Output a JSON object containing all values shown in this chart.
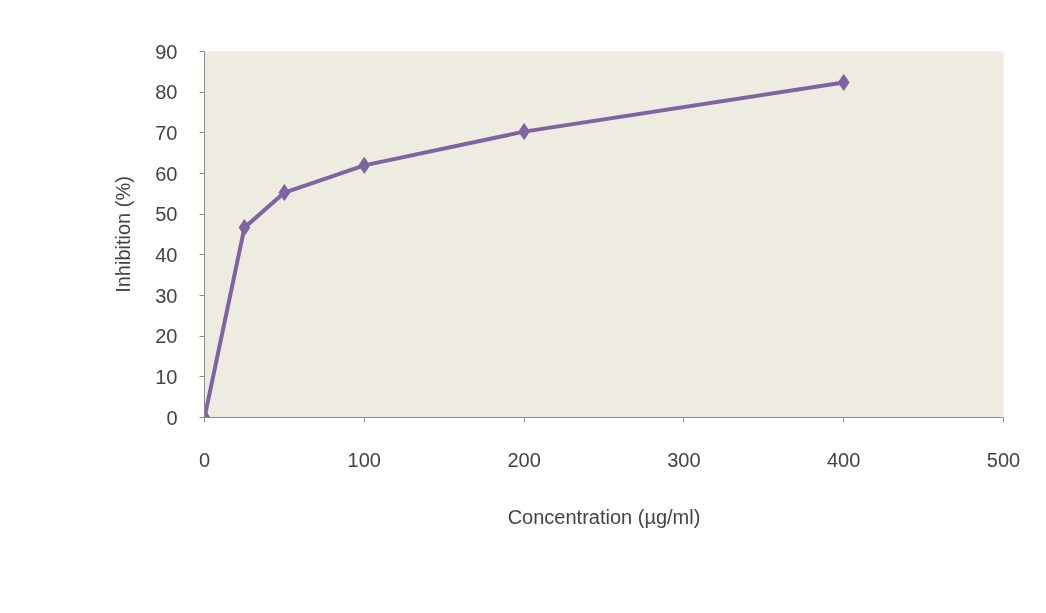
{
  "chart_data": {
    "type": "line",
    "xlabel": "Concentration (µg/ml)",
    "ylabel": "Inhibition (%)",
    "x": [
      0,
      25,
      50,
      100,
      200,
      400
    ],
    "series": [
      {
        "color": "#8064a2",
        "values": [
          0,
          46.7,
          55.3,
          62.0,
          70.3,
          82.4
        ]
      }
    ],
    "xlim": [
      0,
      500
    ],
    "xticks": [
      0,
      100,
      200,
      300,
      400,
      500
    ],
    "ylim": [
      0,
      90
    ],
    "yticks": [
      0,
      10,
      20,
      30,
      40,
      50,
      60,
      70,
      80,
      90
    ],
    "grid": false,
    "marker": "diamond",
    "line_style": "solid"
  }
}
